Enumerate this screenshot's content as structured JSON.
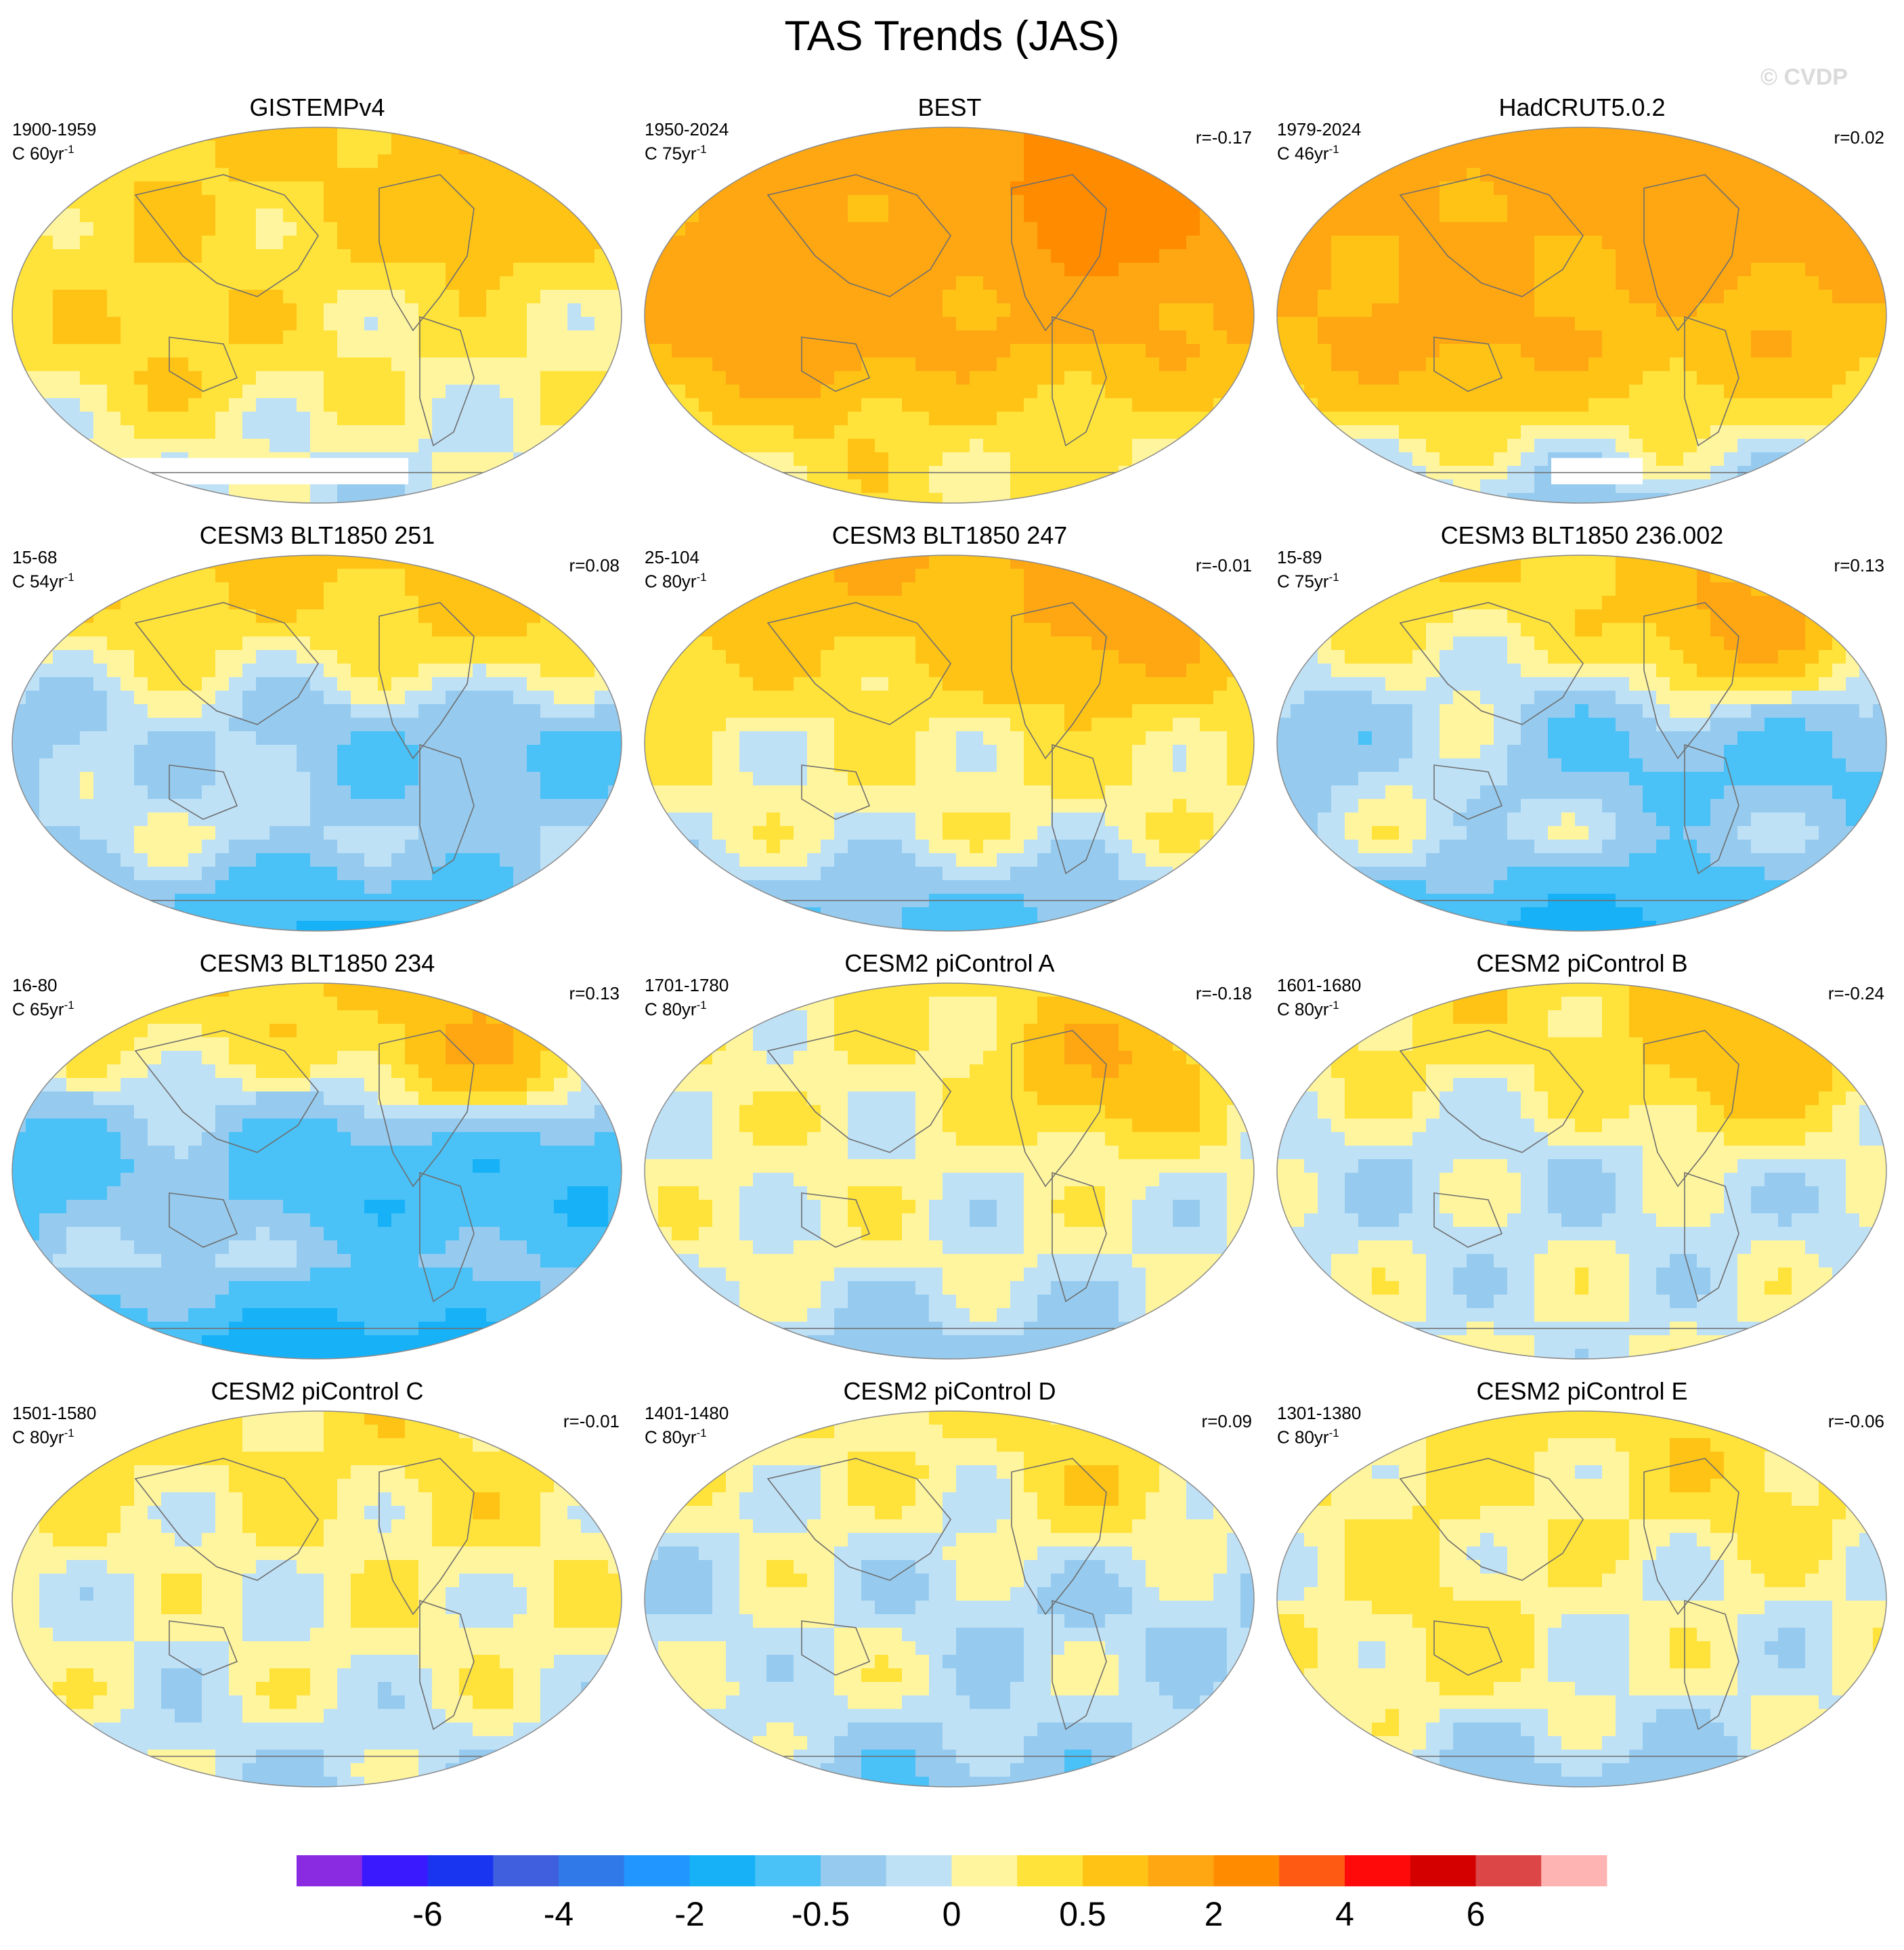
{
  "title": "TAS Trends (JAS)",
  "watermark": "© CVDP",
  "panels": [
    {
      "title": "GISTEMPv4",
      "period": "1900-1959",
      "trend": "C 60yr",
      "exp": "-1",
      "r": "",
      "pattern": [
        0.6,
        0.2,
        0.35,
        -0.1,
        0.5
      ],
      "obs": true,
      "missing": [
        0.1,
        0.65
      ]
    },
    {
      "title": "BEST",
      "period": "1950-2024",
      "trend": "C 75yr",
      "exp": "-1",
      "r": "r=-0.17",
      "pattern": [
        1.6,
        1.0,
        0.5,
        0.3,
        1.8
      ],
      "obs": true,
      "missing": []
    },
    {
      "title": "HadCRUT5.0.2",
      "period": "1979-2024",
      "trend": "C 46yr",
      "exp": "-1",
      "r": "r=0.02",
      "pattern": [
        1.5,
        0.9,
        0.3,
        -0.3,
        0.4
      ],
      "obs": true,
      "missing": [
        0.45,
        0.6
      ]
    },
    {
      "title": "CESM3 BLT1850 251",
      "period": "15-68",
      "trend": "C 54yr",
      "exp": "-1",
      "r": "r=0.08",
      "pattern": [
        0.6,
        -0.5,
        0.4,
        -1.2,
        0.3
      ],
      "obs": false,
      "missing": []
    },
    {
      "title": "CESM3 BLT1850 247",
      "period": "25-104",
      "trend": "C 80yr",
      "exp": "-1",
      "r": "r=-0.01",
      "pattern": [
        1.0,
        0.2,
        -0.1,
        -0.8,
        0.6
      ],
      "obs": false,
      "missing": []
    },
    {
      "title": "CESM3 BLT1850 236.002",
      "period": "15-89",
      "trend": "C 75yr",
      "exp": "-1",
      "r": "r=0.13",
      "pattern": [
        0.5,
        -0.6,
        0.5,
        -1.4,
        1.0
      ],
      "obs": false,
      "missing": []
    },
    {
      "title": "CESM3 BLT1850 234",
      "period": "16-80",
      "trend": "C 65yr",
      "exp": "-1",
      "r": "r=0.13",
      "pattern": [
        0.5,
        -1.0,
        0.6,
        -1.8,
        0.8
      ],
      "obs": false,
      "missing": []
    },
    {
      "title": "CESM2 piControl A",
      "period": "1701-1780",
      "trend": "C 80yr",
      "exp": "-1",
      "r": "r=-0.18",
      "pattern": [
        0.2,
        0.0,
        0.1,
        -0.4,
        0.9
      ],
      "obs": false,
      "missing": []
    },
    {
      "title": "CESM2 piControl B",
      "period": "1601-1680",
      "trend": "C 80yr",
      "exp": "-1",
      "r": "r=-0.24",
      "pattern": [
        0.4,
        -0.1,
        0.0,
        0.0,
        0.7
      ],
      "obs": false,
      "missing": []
    },
    {
      "title": "CESM2 piControl C",
      "period": "1501-1580",
      "trend": "C 80yr",
      "exp": "-1",
      "r": "r=-0.01",
      "pattern": [
        0.3,
        0.1,
        -0.1,
        -0.2,
        0.1
      ],
      "obs": false,
      "missing": []
    },
    {
      "title": "CESM2 piControl D",
      "period": "1401-1480",
      "trend": "C 80yr",
      "exp": "-1",
      "r": "r=0.09",
      "pattern": [
        0.2,
        -0.2,
        0.2,
        -0.5,
        0.3
      ],
      "obs": false,
      "missing": []
    },
    {
      "title": "CESM2 piControl E",
      "period": "1301-1380",
      "trend": "C 80yr",
      "exp": "-1",
      "r": "r=-0.06",
      "pattern": [
        0.3,
        0.0,
        0.3,
        -0.4,
        0.2
      ],
      "obs": false,
      "missing": []
    }
  ],
  "colorbar": {
    "colors": [
      "#8a2be2",
      "#3b19ff",
      "#1a35f0",
      "#3f5fde",
      "#2f7ae8",
      "#2196ff",
      "#16b1f7",
      "#4ac1f7",
      "#96cbef",
      "#bfe1f6",
      "#fff59e",
      "#ffe23a",
      "#ffc316",
      "#ffa712",
      "#ff8c00",
      "#ff5a14",
      "#ff0a0a",
      "#d40000",
      "#dd4646",
      "#ffb4b4"
    ],
    "tick_labels": [
      "-6",
      "-4",
      "-2",
      "-0.5",
      "0",
      "0.5",
      "2",
      "4",
      "6"
    ],
    "levels": [
      -8,
      -7,
      -6,
      -5,
      -4,
      -3,
      -2,
      -1,
      -0.5,
      -0.2,
      0,
      0.2,
      0.5,
      1,
      2,
      3,
      4,
      5,
      6,
      7,
      8
    ]
  },
  "chart_data": {
    "type": "heatmap",
    "title": "TAS Trends (JAS)",
    "units": "C per period",
    "projection": "Robinson global maps, 4 x 3 grid",
    "colorbar_ticks": [
      "-6",
      "-4",
      "-2",
      "-0.5",
      "0",
      "0.5",
      "2",
      "4",
      "6"
    ],
    "panels": [
      {
        "name": "GISTEMPv4",
        "period": "1900-1959",
        "trend_length": "60yr",
        "r": null
      },
      {
        "name": "BEST",
        "period": "1950-2024",
        "trend_length": "75yr",
        "r": -0.17
      },
      {
        "name": "HadCRUT5.0.2",
        "period": "1979-2024",
        "trend_length": "46yr",
        "r": 0.02
      },
      {
        "name": "CESM3 BLT1850 251",
        "period": "15-68",
        "trend_length": "54yr",
        "r": 0.08
      },
      {
        "name": "CESM3 BLT1850 247",
        "period": "25-104",
        "trend_length": "80yr",
        "r": -0.01
      },
      {
        "name": "CESM3 BLT1850 236.002",
        "period": "15-89",
        "trend_length": "75yr",
        "r": 0.13
      },
      {
        "name": "CESM3 BLT1850 234",
        "period": "16-80",
        "trend_length": "65yr",
        "r": 0.13
      },
      {
        "name": "CESM2 piControl A",
        "period": "1701-1780",
        "trend_length": "80yr",
        "r": -0.18
      },
      {
        "name": "CESM2 piControl B",
        "period": "1601-1680",
        "trend_length": "80yr",
        "r": -0.24
      },
      {
        "name": "CESM2 piControl C",
        "period": "1501-1580",
        "trend_length": "80yr",
        "r": -0.01
      },
      {
        "name": "CESM2 piControl D",
        "period": "1401-1480",
        "trend_length": "80yr",
        "r": 0.09
      },
      {
        "name": "CESM2 piControl E",
        "period": "1301-1380",
        "trend_length": "80yr",
        "r": -0.06
      }
    ]
  }
}
